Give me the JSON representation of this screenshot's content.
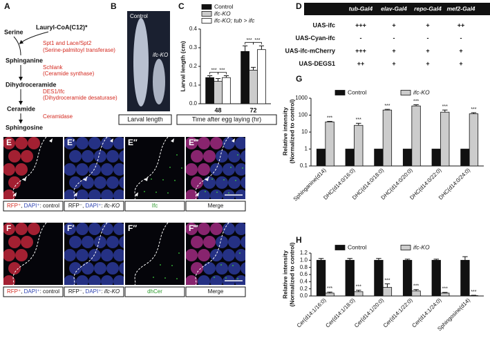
{
  "pathway": {
    "letter": "A",
    "nodes": [
      "Serine",
      "Lauryl-CoA(C12)*",
      "Sphinganine",
      "Dihydroceramide",
      "Ceramide",
      "Sphingosine"
    ],
    "enzymes": [
      [
        "Spt1 and Lace/Spt2",
        "(Serine-palmitoyl transferase)"
      ],
      [
        "Schlank",
        "(Ceramide synthase)"
      ],
      [
        "DES1/Ifc",
        "(Dihydroceramide desaturase)"
      ],
      [
        "Ceramidase"
      ]
    ]
  },
  "larvae": {
    "letter": "B",
    "labels": [
      "Control",
      "ifc-KO"
    ],
    "caption": "Larval length"
  },
  "table": {
    "letter": "D",
    "header": [
      "tub-Gal4",
      "elav-Gal4",
      "repo-Gal4",
      "mef2-Gal4"
    ],
    "rows": [
      [
        "UAS-ifc",
        "+++",
        "+",
        "+",
        "++"
      ],
      [
        "UAS-Cyan-ifc",
        "-",
        "-",
        "-",
        "-"
      ],
      [
        "UAS-ifc-mCherry",
        "+++",
        "+",
        "+",
        "+"
      ],
      [
        "UAS-DEGS1",
        "++",
        "+",
        "+",
        "+"
      ]
    ]
  },
  "imaging": [
    {
      "panels": [
        "E",
        "E′",
        "E″",
        "E‴"
      ],
      "captions": [
        [
          "RFP⁺",
          ", ",
          "DAPI⁺",
          ": control"
        ],
        [
          "RFP⁻",
          ", ",
          "DAPI⁺",
          ": ",
          "ifc-KO"
        ],
        [
          "Ifc"
        ],
        [
          "Merge"
        ]
      ],
      "caption_colors": [
        [
          "#d42a20",
          "#111",
          "#2a3fb0",
          "#111"
        ],
        [
          "#111",
          "#111",
          "#2a3fb0",
          "#111",
          "#111"
        ],
        [
          "#2a9a2a"
        ],
        [
          "#111"
        ]
      ]
    },
    {
      "panels": [
        "F",
        "F′",
        "F″",
        "F‴"
      ],
      "captions": [
        [
          "RFP⁺",
          ", ",
          "DAPI⁺",
          ": control"
        ],
        [
          "RFP⁻",
          ", ",
          "DAPI⁺",
          ": ",
          "ifc-KO"
        ],
        [
          "dhCer"
        ],
        [
          "Merge"
        ]
      ],
      "caption_colors": [
        [
          "#d42a20",
          "#111",
          "#2a3fb0",
          "#111"
        ],
        [
          "#111",
          "#111",
          "#2a3fb0",
          "#111",
          "#111"
        ],
        [
          "#2a9a2a"
        ],
        [
          "#111"
        ]
      ]
    }
  ],
  "chart_data": [
    {
      "type": "bar",
      "panel": "C",
      "ylabel": [
        "Larval length (cm)"
      ],
      "xlabel": "Time after egg laying (hr)",
      "categories": [
        "48",
        "72"
      ],
      "series": [
        {
          "name": "Control",
          "color": "#111111",
          "values": [
            0.14,
            0.28
          ],
          "errors": [
            0.01,
            0.03
          ]
        },
        {
          "name": "ifc-KO",
          "color": "#cccccc",
          "values": [
            0.12,
            0.18
          ],
          "errors": [
            0.015,
            0.015
          ]
        },
        {
          "name": "ifc-KO; tub > ifc",
          "color": "#ffffff",
          "values": [
            0.14,
            0.29
          ],
          "errors": [
            0.01,
            0.02
          ]
        }
      ],
      "ylim": [
        0,
        0.4
      ],
      "yticks": [
        {
          "value": 0,
          "label": "0.0"
        },
        0.1,
        0.2,
        0.3,
        0.4
      ],
      "annotations": [
        "***",
        "***",
        "***",
        "***"
      ],
      "legend": "upper left"
    },
    {
      "type": "bar",
      "panel": "G",
      "ylabel": [
        "Relative intensity",
        "(Normalized to control)"
      ],
      "categories": [
        "Sphinganine(d14)",
        "DHC(d14:0/16:0)",
        "DHC(d14:0/18:0)",
        "DHC(d14:0/20:0)",
        "DHC(d14:0/22:0)",
        "DHC(d14:0/24:0)"
      ],
      "series": [
        {
          "name": "Control",
          "color": "#111111",
          "values": [
            1,
            1,
            1,
            1,
            1,
            1
          ]
        },
        {
          "name": "ifc-KO",
          "color": "#cccccc",
          "values": [
            40,
            25,
            200,
            350,
            150,
            120
          ],
          "errors": [
            3,
            8,
            20,
            60,
            50,
            20
          ]
        }
      ],
      "ylim": [
        0.1,
        1000
      ],
      "yticks": [
        0.1,
        1,
        10,
        100,
        1000
      ],
      "log": true,
      "annotations": [
        "***",
        "***",
        "***",
        "***",
        "***",
        "***"
      ],
      "legend": "top"
    },
    {
      "type": "bar",
      "panel": "H",
      "ylabel": [
        "Relative intensity",
        "(Normalized to control)"
      ],
      "categories": [
        "Cer(d14:1/16:0)",
        "Cer(d14:1/18:0)",
        "Cer(d14:1/20:0)",
        "Cer(d14:1/22:0)",
        "Cer(d14:1/24:0)",
        "Sphingosine(d14)"
      ],
      "series": [
        {
          "name": "Control",
          "color": "#111111",
          "values": [
            1,
            1,
            1,
            1,
            1,
            1
          ],
          "errors": [
            0.05,
            0.05,
            0.05,
            0.03,
            0.03,
            0.1
          ]
        },
        {
          "name": "ifc-KO",
          "color": "#cccccc",
          "values": [
            0.08,
            0.12,
            0.24,
            0.14,
            0.08,
            0.01
          ],
          "errors": [
            0.03,
            0.04,
            0.1,
            0.04,
            0.02,
            0.01
          ]
        }
      ],
      "ylim": [
        0,
        1.2
      ],
      "yticks": [
        {
          "value": 0,
          "label": "0.0"
        },
        0.2,
        0.4,
        0.6,
        0.8,
        {
          "value": 1,
          "label": "1.0"
        },
        1.2
      ],
      "annotations": [
        "***",
        "***",
        "***",
        "***",
        "***",
        "***"
      ],
      "legend": "top"
    }
  ]
}
